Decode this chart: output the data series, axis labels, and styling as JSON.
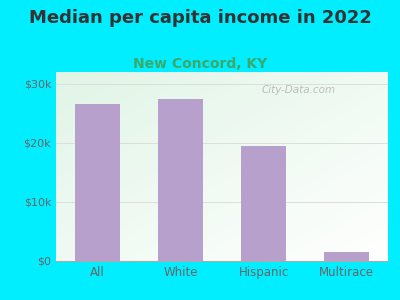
{
  "title": "Median per capita income in 2022",
  "subtitle": "New Concord, KY",
  "categories": [
    "All",
    "White",
    "Hispanic",
    "Multirace"
  ],
  "values": [
    26500,
    27500,
    19500,
    1500
  ],
  "bar_color": "#b8a0cc",
  "title_fontsize": 13,
  "subtitle_fontsize": 10,
  "subtitle_color": "#3aaa6a",
  "title_color": "#333333",
  "background_outer": "#00eeff",
  "tick_color": "#666666",
  "yticks": [
    0,
    10000,
    20000,
    30000
  ],
  "ytick_labels": [
    "$0",
    "$10k",
    "$20k",
    "$30k"
  ],
  "ylim": [
    0,
    32000
  ],
  "grid_color": "#dddddd",
  "watermark": "City-Data.com"
}
